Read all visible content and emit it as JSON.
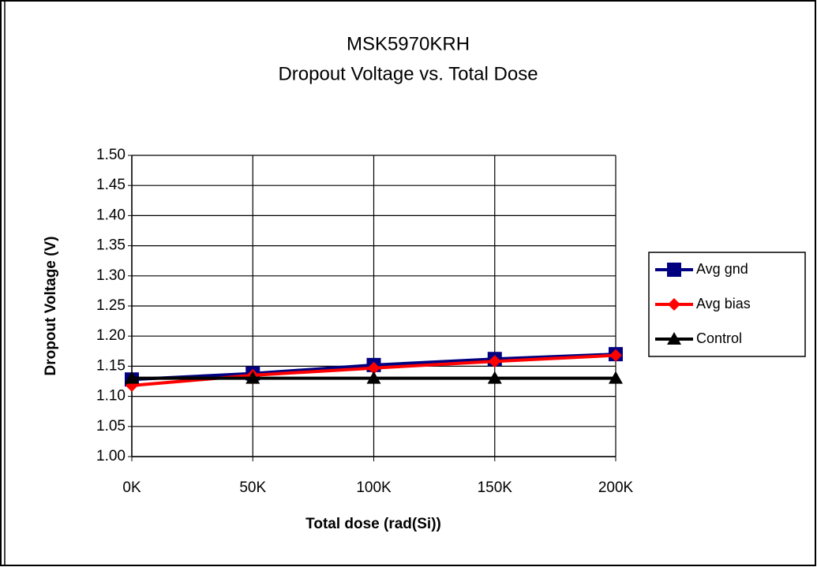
{
  "chart_data": {
    "type": "line",
    "title": "MSK5970KRH",
    "subtitle": "Dropout Voltage vs. Total Dose",
    "x_label": "Total dose (rad(Si))",
    "y_label": "Dropout Voltage (V)",
    "categories": [
      "0K",
      "50K",
      "100K",
      "150K",
      "200K"
    ],
    "series": [
      {
        "name": "Avg gnd",
        "color": "#000080",
        "marker": "square",
        "values": [
          1.128,
          1.138,
          1.152,
          1.162,
          1.17
        ]
      },
      {
        "name": "Avg bias",
        "color": "#ff0000",
        "marker": "diamond",
        "values": [
          1.118,
          1.135,
          1.147,
          1.158,
          1.168
        ]
      },
      {
        "name": "Control",
        "color": "#000000",
        "marker": "triangle",
        "values": [
          1.13,
          1.13,
          1.13,
          1.13,
          1.13
        ]
      }
    ],
    "ylim": [
      1.0,
      1.5
    ],
    "yticks": [
      {
        "value": 1.0,
        "label": "1.00"
      },
      1.05,
      {
        "value": 1.1,
        "label": "1.10"
      },
      1.15,
      {
        "value": 1.2,
        "label": "1.20"
      },
      1.25,
      {
        "value": 1.3,
        "label": "1.30"
      },
      1.35,
      {
        "value": 1.4,
        "label": "1.40"
      },
      1.45,
      {
        "value": 1.5,
        "label": "1.50"
      }
    ],
    "grid": true,
    "legend": "right"
  }
}
